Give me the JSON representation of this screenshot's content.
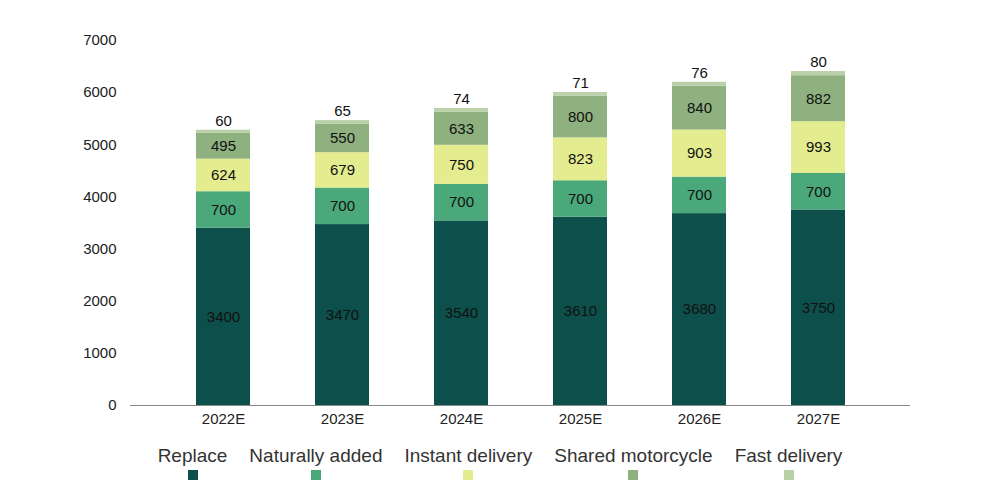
{
  "chart_data": {
    "type": "bar",
    "stacked": true,
    "data_labels": true,
    "categories": [
      "2022E",
      "2023E",
      "2024E",
      "2025E",
      "2026E",
      "2027E"
    ],
    "series": [
      {
        "name": "Replace",
        "color": "#0d4f4a",
        "values": [
          3400,
          3470,
          3540,
          3610,
          3680,
          3750
        ]
      },
      {
        "name": "Naturally added",
        "color": "#4aa87a",
        "values": [
          700,
          700,
          700,
          700,
          700,
          700
        ]
      },
      {
        "name": "Instant delivery",
        "color": "#e3ec8e",
        "values": [
          624,
          679,
          750,
          823,
          903,
          993
        ]
      },
      {
        "name": "Shared motorcycle",
        "color": "#8fb07f",
        "values": [
          495,
          550,
          633,
          800,
          840,
          882
        ]
      },
      {
        "name": "Fast delivery",
        "color": "#b9d0a9",
        "values": [
          60,
          65,
          74,
          71,
          76,
          80
        ]
      }
    ],
    "ylim": [
      0,
      7000
    ],
    "yticks": [
      0,
      1000,
      2000,
      3000,
      4000,
      5000,
      6000,
      7000
    ],
    "grid": false,
    "legend": "bottom"
  }
}
